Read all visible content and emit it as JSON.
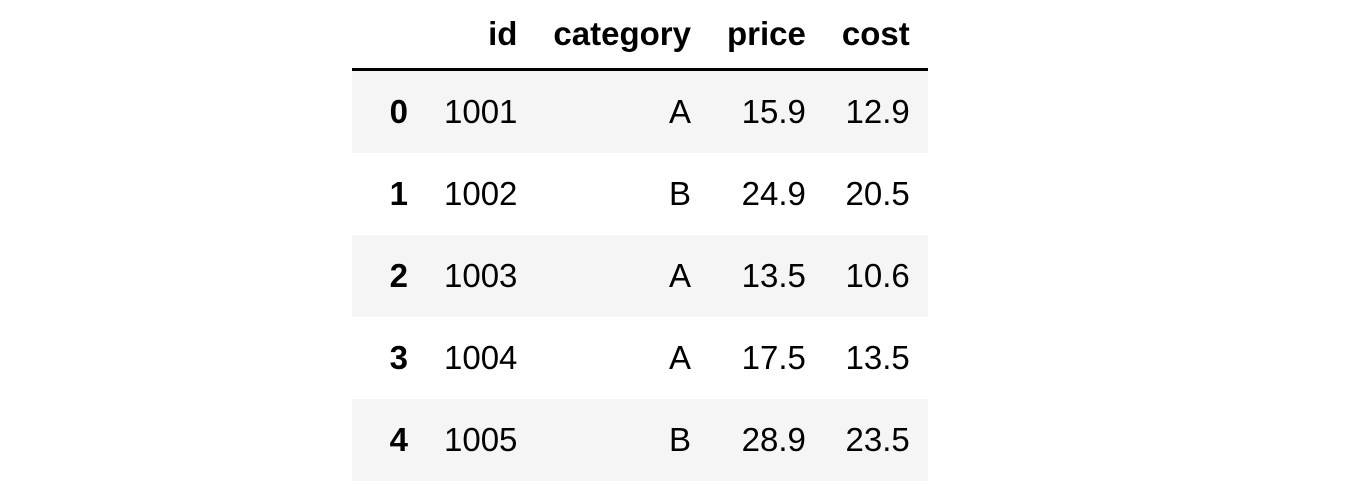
{
  "table": {
    "columns": [
      "",
      "id",
      "category",
      "price",
      "cost"
    ],
    "rows": [
      {
        "index": "0",
        "id": "1001",
        "category": "A",
        "price": "15.9",
        "cost": "12.9"
      },
      {
        "index": "1",
        "id": "1002",
        "category": "B",
        "price": "24.9",
        "cost": "20.5"
      },
      {
        "index": "2",
        "id": "1003",
        "category": "A",
        "price": "13.5",
        "cost": "10.6"
      },
      {
        "index": "3",
        "id": "1004",
        "category": "A",
        "price": "17.5",
        "cost": "13.5"
      },
      {
        "index": "4",
        "id": "1005",
        "category": "B",
        "price": "28.9",
        "cost": "23.5"
      }
    ]
  }
}
